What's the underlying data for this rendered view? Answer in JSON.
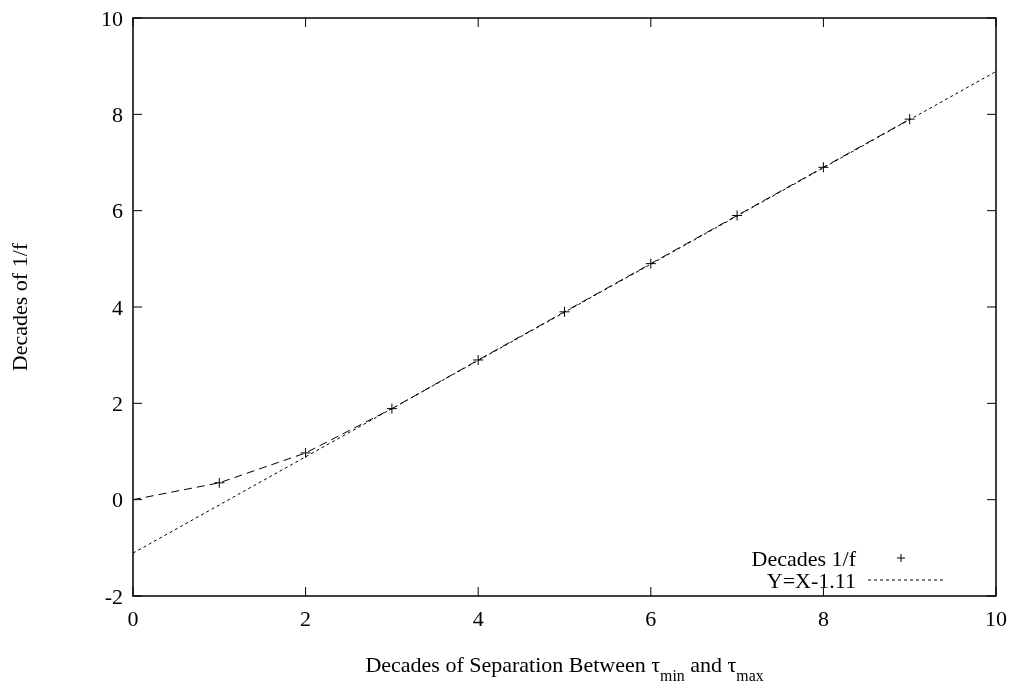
{
  "chart_data": {
    "type": "line",
    "xlabel": "Decades of Separation Between τ$_{min}$ and τ$_{max}$",
    "ylabel": "Decades of 1/f",
    "xlim": [
      0,
      10
    ],
    "ylim": [
      -2,
      10
    ],
    "xticks": [
      0,
      2,
      4,
      6,
      8,
      10
    ],
    "yticks": [
      -2,
      0,
      2,
      4,
      6,
      8,
      10
    ],
    "grid": false,
    "legend": "bottom right",
    "series": [
      {
        "color": "#000000",
        "line_style": "dashed",
        "marker": "none",
        "x": [
          0,
          1,
          2,
          3,
          4,
          5,
          6,
          7,
          8,
          9
        ],
        "values": [
          0,
          0.35,
          0.97,
          1.89,
          2.9,
          3.9,
          4.9,
          5.9,
          6.9,
          7.9
        ]
      },
      {
        "type": "scatter",
        "name": "Decades 1/f",
        "color": "#000000",
        "marker": "cross",
        "x": [
          1,
          2,
          3,
          4,
          5,
          6,
          7,
          8,
          9
        ],
        "values": [
          0.35,
          0.97,
          1.89,
          2.9,
          3.9,
          4.9,
          5.9,
          6.9,
          7.9
        ]
      },
      {
        "name": "Y=X-1.11",
        "color": "#000000",
        "line_style": "dotted",
        "marker": "none",
        "x": [
          0,
          10
        ],
        "values": [
          -1.11,
          8.89
        ]
      }
    ]
  }
}
